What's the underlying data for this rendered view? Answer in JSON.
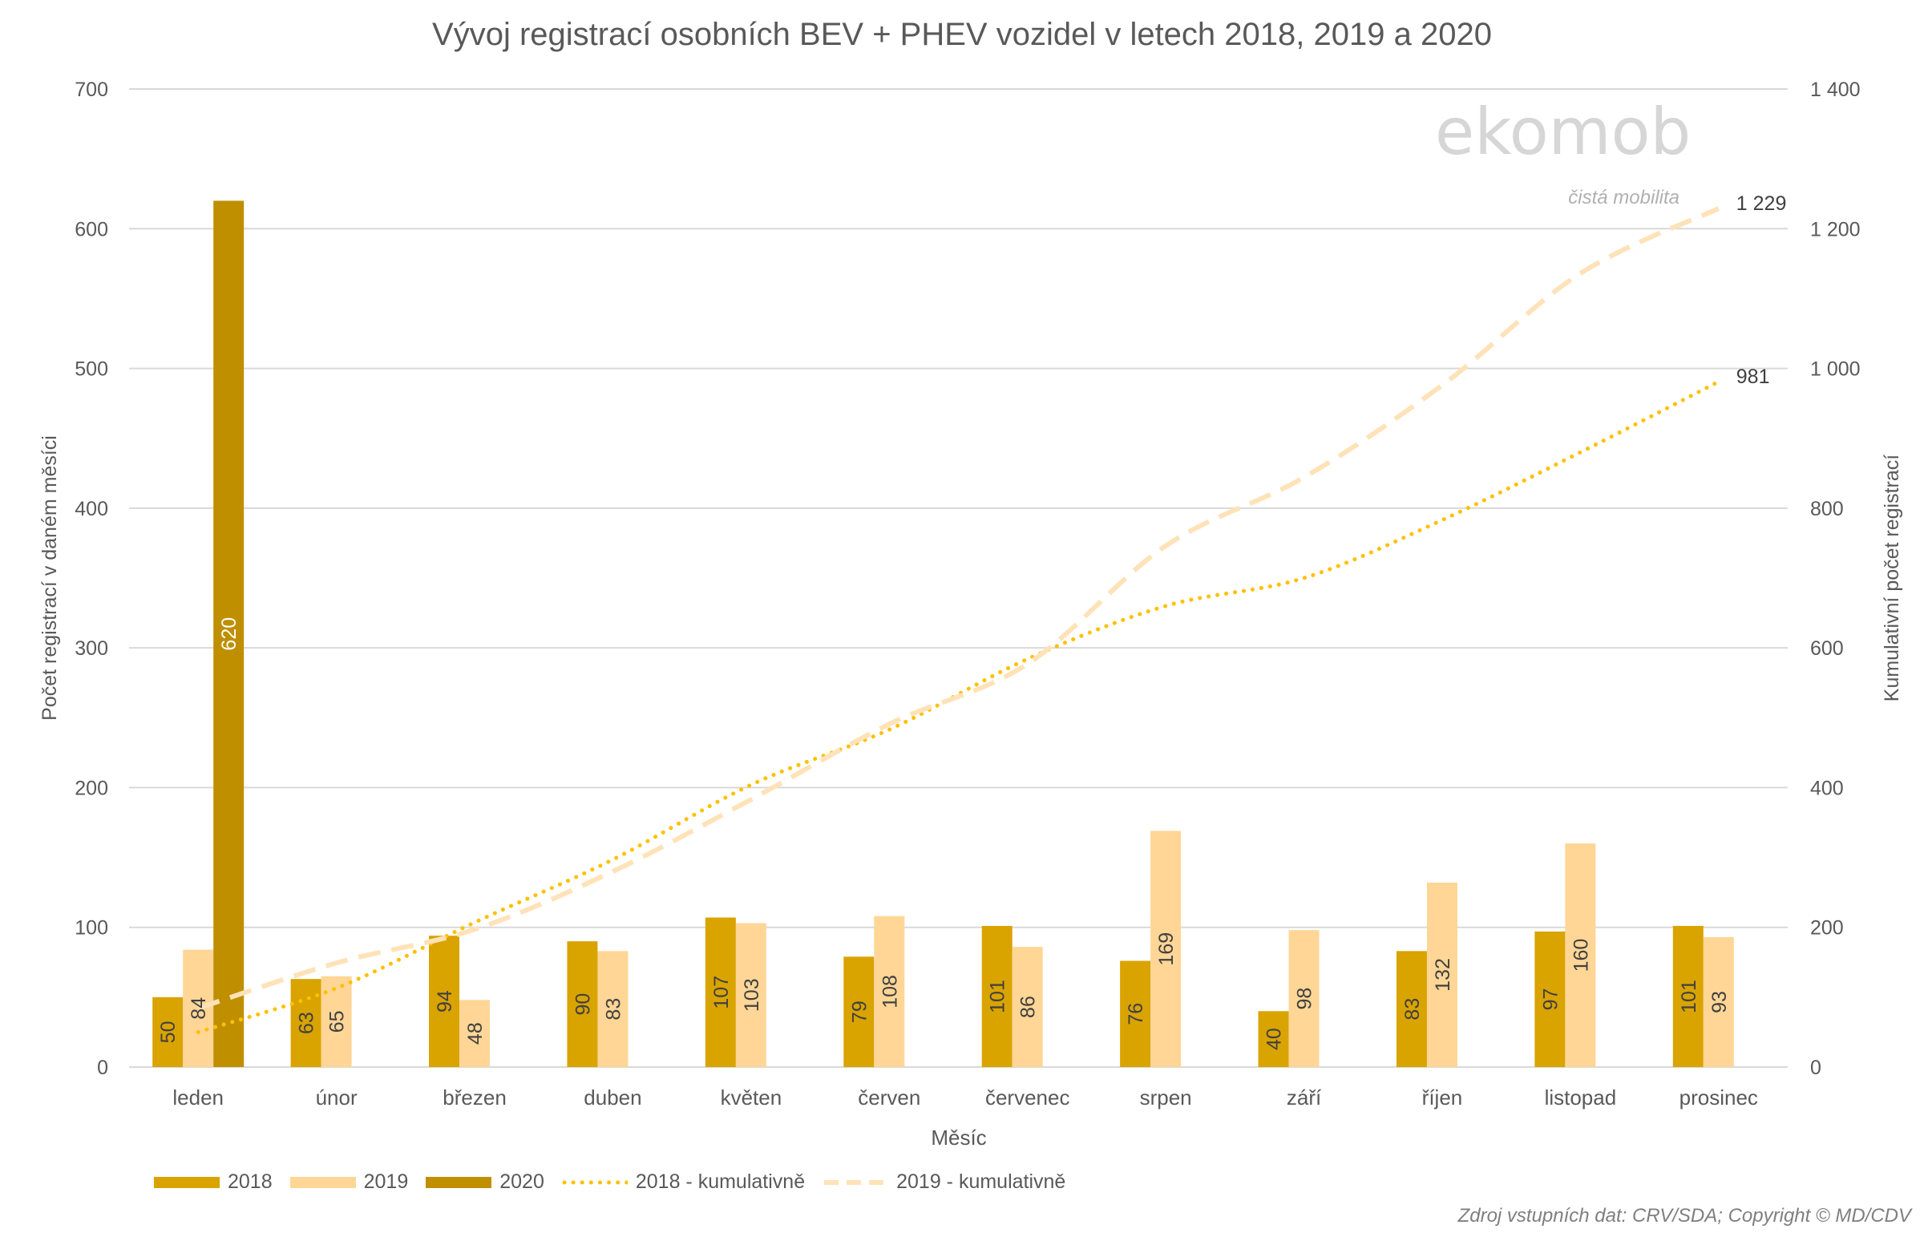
{
  "chart_data": {
    "type": "bar",
    "title": "Vývoj registrací osobních BEV + PHEV vozidel v letech  2018, 2019 a 2020",
    "xlabel": "Měsíc",
    "ylabel": "Počet registrací v daném měsíci",
    "y2label": "Kumulativní počet registrací",
    "ylim": [
      0,
      700
    ],
    "y2lim": [
      0,
      1400
    ],
    "yticks": [
      "0",
      "100",
      "200",
      "300",
      "400",
      "500",
      "600",
      "700"
    ],
    "y2ticks": [
      "0",
      "200",
      "400",
      "600",
      "800",
      "1 000",
      "1 200",
      "1 400"
    ],
    "grid": true,
    "legend_position": "bottom-left",
    "categories": [
      "leden",
      "únor",
      "březen",
      "duben",
      "květen",
      "červen",
      "červenec",
      "srpen",
      "září",
      "říjen",
      "listopad",
      "prosinec"
    ],
    "series": [
      {
        "name": "2018",
        "type": "bar",
        "color": "#D9A300",
        "values": [
          50,
          63,
          94,
          90,
          107,
          79,
          101,
          76,
          40,
          83,
          97,
          101
        ]
      },
      {
        "name": "2019",
        "type": "bar",
        "color": "#FFD696",
        "values": [
          84,
          65,
          48,
          83,
          103,
          108,
          86,
          169,
          98,
          132,
          160,
          93
        ]
      },
      {
        "name": "2020",
        "type": "bar",
        "color": "#BF8F00",
        "values": [
          620,
          null,
          null,
          null,
          null,
          null,
          null,
          null,
          null,
          null,
          null,
          null
        ]
      },
      {
        "name": "2018 - kumulativně",
        "type": "line",
        "axis": "right",
        "style": "dotted",
        "color": "#FFC000",
        "values": [
          50,
          113,
          207,
          297,
          404,
          483,
          584,
          660,
          700,
          783,
          880,
          981
        ],
        "end_label": "981"
      },
      {
        "name": "2019 - kumulativně",
        "type": "line",
        "axis": "right",
        "style": "dashed",
        "color": "#FFE2B8",
        "values": [
          84,
          149,
          197,
          280,
          383,
          491,
          577,
          746,
          844,
          976,
          1136,
          1229
        ],
        "end_label": "1 229"
      }
    ]
  },
  "logo": {
    "name": "ekomob",
    "tagline": "čistá mobilita"
  },
  "source": "Zdroj vstupních dat: CRV/SDA; Copyright © MD/CDV"
}
